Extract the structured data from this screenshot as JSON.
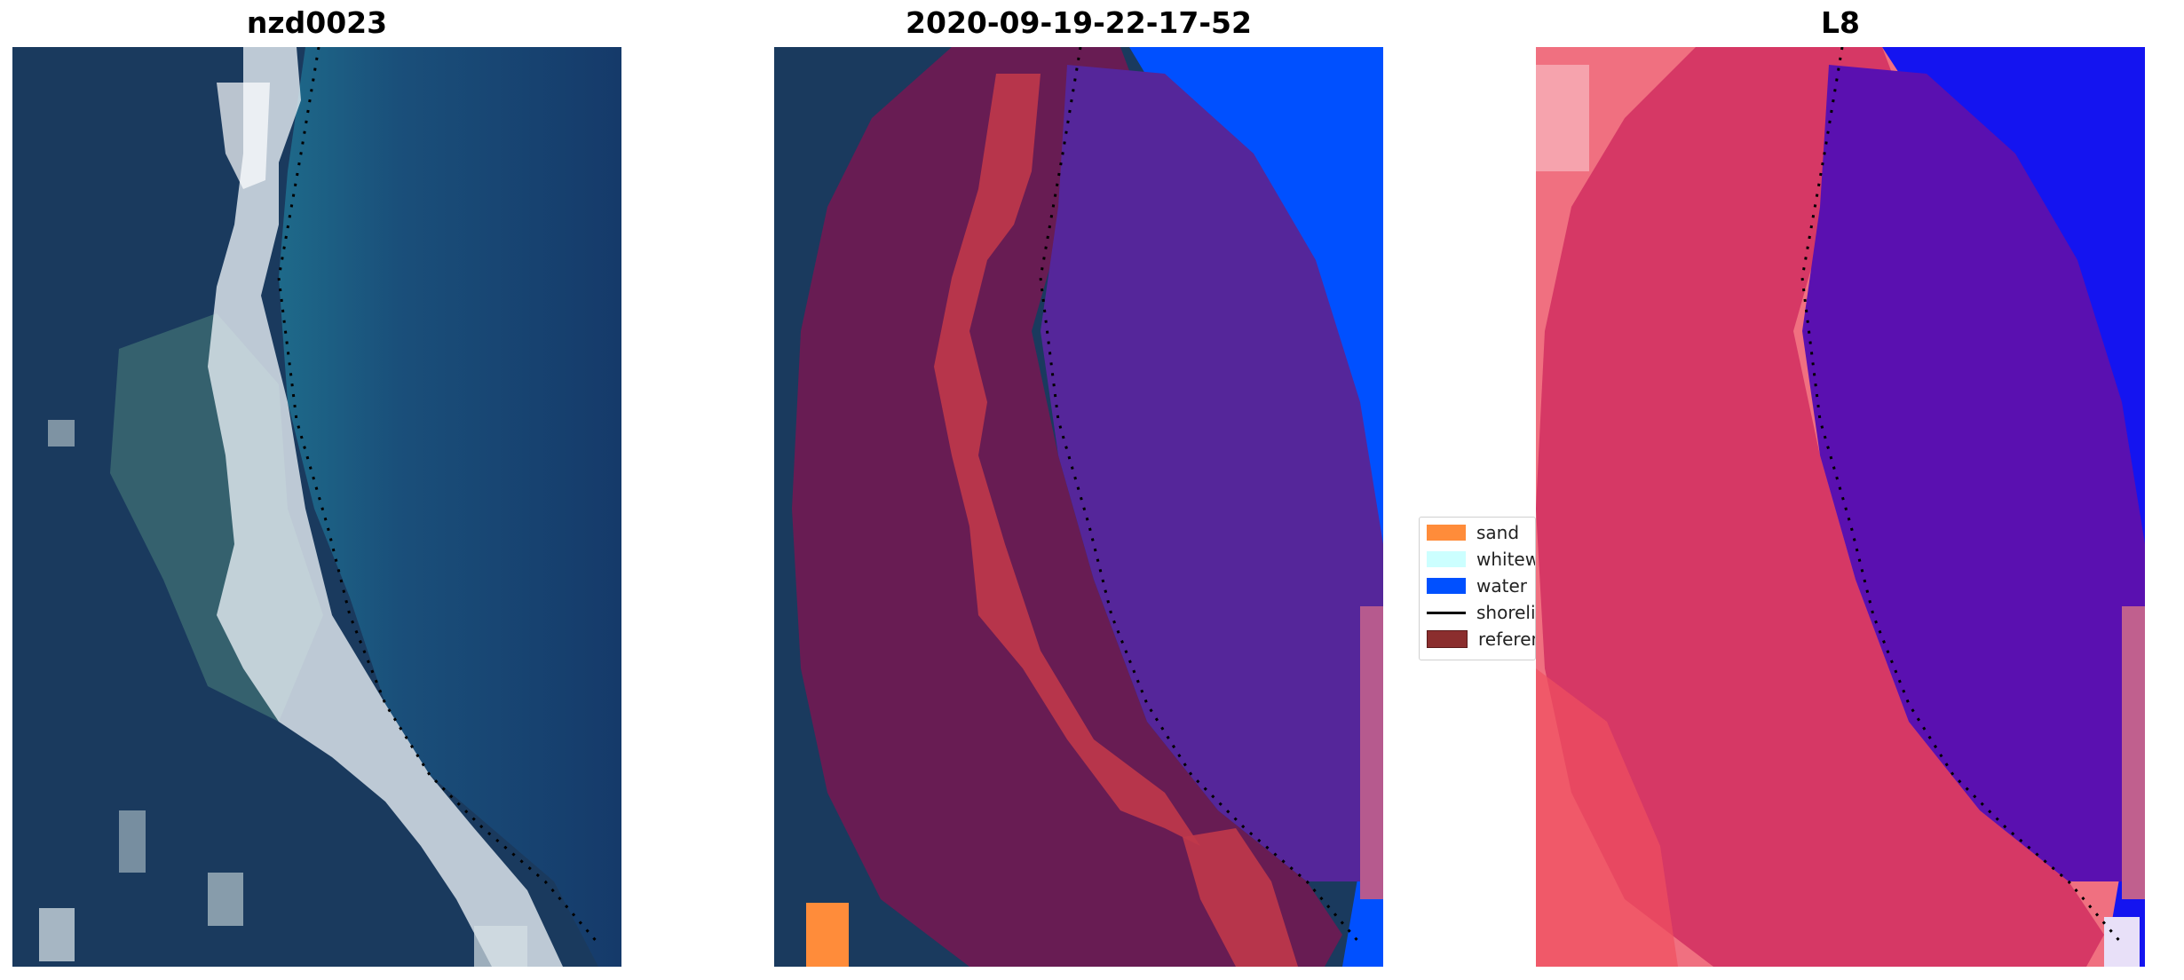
{
  "panels": [
    {
      "title": "nzd0023",
      "kind": "rgb"
    },
    {
      "title": "2020-09-19-22-17-52",
      "kind": "classified"
    },
    {
      "title": "L8",
      "kind": "index"
    }
  ],
  "legend": {
    "items": [
      {
        "label": "sand",
        "color": "#ff8c3a",
        "type": "patch"
      },
      {
        "label": "whitewater",
        "color": "#ccffff",
        "type": "patch"
      },
      {
        "label": "water",
        "color": "#0050ff",
        "type": "patch"
      },
      {
        "label": "shoreline",
        "color": "#000000",
        "type": "line"
      },
      {
        "label": "reference region",
        "color": "#8b2e2e",
        "type": "patch"
      }
    ]
  },
  "colors": {
    "ocean_deep": "#123061",
    "ocean_shallow": "#1e6a8a",
    "land_dark": "#1a3a5e",
    "beach_white": "#e6eef2",
    "reference_overlay": "#7a1a55",
    "sand_overlay": "#c0384a",
    "water_overlay": "#5a2aa0",
    "index_land": "#e04060",
    "index_water": "#5a10b0",
    "index_blue": "#1414f0"
  }
}
